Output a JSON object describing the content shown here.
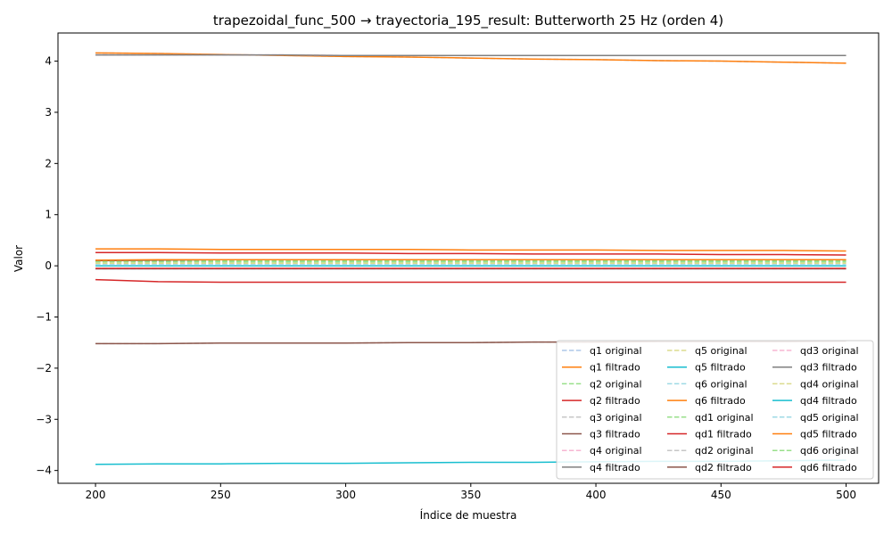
{
  "chart_data": {
    "type": "line",
    "title": "trapezoidal_func_500 → trayectoria_195_result: Butterworth 25 Hz (orden 4)",
    "xlabel": "Índice de muestra",
    "ylabel": "Valor",
    "xlim": [
      185,
      513
    ],
    "ylim": [
      -4.25,
      4.55
    ],
    "xticks": [
      200,
      250,
      300,
      350,
      400,
      450,
      500
    ],
    "yticks": [
      -4,
      -3,
      -2,
      -1,
      0,
      1,
      2,
      3,
      4
    ],
    "xtick_labels": [
      "200",
      "250",
      "300",
      "350",
      "400",
      "450",
      "500"
    ],
    "ytick_labels": [
      "−4",
      "−3",
      "−2",
      "−1",
      "0",
      "1",
      "2",
      "3",
      "4"
    ],
    "grid": false,
    "legend": {
      "placement": "lower-right",
      "columns": 3
    },
    "x": [
      200,
      225,
      250,
      275,
      300,
      325,
      350,
      375,
      400,
      425,
      450,
      475,
      500
    ],
    "series": [
      {
        "name": "q1 original",
        "color": "#aec7e8",
        "style": "dashed",
        "values": [
          4.16,
          4.15,
          4.13,
          4.11,
          4.09,
          4.08,
          4.06,
          4.04,
          4.03,
          4.01,
          4.0,
          3.98,
          3.96
        ]
      },
      {
        "name": "q1 filtrado",
        "color": "#ff7f0e",
        "style": "solid",
        "values": [
          4.16,
          4.15,
          4.13,
          4.11,
          4.09,
          4.08,
          4.06,
          4.04,
          4.03,
          4.01,
          4.0,
          3.98,
          3.96
        ]
      },
      {
        "name": "q2 original",
        "color": "#98df8a",
        "style": "dashed",
        "values": [
          0.08,
          0.08,
          0.08,
          0.08,
          0.08,
          0.08,
          0.08,
          0.08,
          0.08,
          0.08,
          0.08,
          0.08,
          0.08
        ]
      },
      {
        "name": "q2 filtrado",
        "color": "#d62728",
        "style": "solid",
        "values": [
          0.26,
          0.26,
          0.25,
          0.25,
          0.25,
          0.24,
          0.24,
          0.23,
          0.23,
          0.23,
          0.22,
          0.22,
          0.21
        ]
      },
      {
        "name": "q3 original",
        "color": "#c7c7c7",
        "style": "dashed",
        "values": [
          -1.52,
          -1.52,
          -1.51,
          -1.51,
          -1.51,
          -1.5,
          -1.5,
          -1.49,
          -1.49,
          -1.48,
          -1.48,
          -1.48,
          -1.47
        ]
      },
      {
        "name": "q3 filtrado",
        "color": "#8c564b",
        "style": "solid",
        "values": [
          -1.52,
          -1.52,
          -1.51,
          -1.51,
          -1.51,
          -1.5,
          -1.5,
          -1.49,
          -1.49,
          -1.48,
          -1.48,
          -1.48,
          -1.47
        ]
      },
      {
        "name": "q4 original",
        "color": "#f7b6d2",
        "style": "dashed",
        "values": [
          4.12,
          4.12,
          4.12,
          4.12,
          4.11,
          4.11,
          4.11,
          4.11,
          4.11,
          4.11,
          4.11,
          4.11,
          4.11
        ]
      },
      {
        "name": "q4 filtrado",
        "color": "#7f7f7f",
        "style": "solid",
        "values": [
          4.12,
          4.12,
          4.12,
          4.12,
          4.11,
          4.11,
          4.11,
          4.11,
          4.11,
          4.11,
          4.11,
          4.11,
          4.11
        ]
      },
      {
        "name": "q5 original",
        "color": "#dbdb8d",
        "style": "dashed",
        "values": [
          0.11,
          0.11,
          0.11,
          0.11,
          0.11,
          0.11,
          0.11,
          0.11,
          0.11,
          0.11,
          0.11,
          0.11,
          0.11
        ]
      },
      {
        "name": "q5 filtrado",
        "color": "#17becf",
        "style": "solid",
        "values": [
          -3.88,
          -3.87,
          -3.87,
          -3.86,
          -3.86,
          -3.85,
          -3.84,
          -3.84,
          -3.83,
          -3.82,
          -3.82,
          -3.81,
          -3.8
        ]
      },
      {
        "name": "q6 original",
        "color": "#9edae5",
        "style": "dashed",
        "values": [
          0.02,
          0.02,
          0.02,
          0.02,
          0.02,
          0.02,
          0.02,
          0.02,
          0.02,
          0.02,
          0.02,
          0.02,
          0.02
        ]
      },
      {
        "name": "q6 filtrado",
        "color": "#ff7f0e",
        "style": "solid",
        "values": [
          0.33,
          0.33,
          0.32,
          0.32,
          0.32,
          0.32,
          0.31,
          0.31,
          0.31,
          0.3,
          0.3,
          0.3,
          0.29
        ]
      },
      {
        "name": "qd1 original",
        "color": "#98df8a",
        "style": "dashed",
        "values": [
          0.1,
          0.1,
          0.1,
          0.1,
          0.1,
          0.1,
          0.1,
          0.1,
          0.1,
          0.1,
          0.1,
          0.1,
          0.1
        ]
      },
      {
        "name": "qd1 filtrado",
        "color": "#d62728",
        "style": "solid",
        "values": [
          -0.27,
          -0.31,
          -0.32,
          -0.32,
          -0.32,
          -0.32,
          -0.32,
          -0.32,
          -0.32,
          -0.32,
          -0.32,
          -0.32,
          -0.32
        ]
      },
      {
        "name": "qd2 original",
        "color": "#c7c7c7",
        "style": "dashed",
        "values": [
          -0.05,
          -0.05,
          -0.05,
          -0.05,
          -0.05,
          -0.05,
          -0.05,
          -0.05,
          -0.05,
          -0.05,
          -0.05,
          -0.05,
          -0.05
        ]
      },
      {
        "name": "qd2 filtrado",
        "color": "#8c564b",
        "style": "solid",
        "values": [
          0.1,
          0.11,
          0.12,
          0.12,
          0.12,
          0.12,
          0.12,
          0.12,
          0.12,
          0.12,
          0.12,
          0.12,
          0.12
        ]
      },
      {
        "name": "qd3 original",
        "color": "#f7b6d2",
        "style": "dashed",
        "values": [
          -0.06,
          -0.06,
          -0.06,
          -0.06,
          -0.06,
          -0.06,
          -0.06,
          -0.06,
          -0.06,
          -0.06,
          -0.06,
          -0.06,
          -0.06
        ]
      },
      {
        "name": "qd3 filtrado",
        "color": "#7f7f7f",
        "style": "solid",
        "values": [
          -0.06,
          -0.06,
          -0.06,
          -0.06,
          -0.06,
          -0.06,
          -0.06,
          -0.06,
          -0.06,
          -0.06,
          -0.06,
          -0.06,
          -0.06
        ]
      },
      {
        "name": "qd4 original",
        "color": "#dbdb8d",
        "style": "dashed",
        "values": [
          0.05,
          0.05,
          0.05,
          0.05,
          0.05,
          0.05,
          0.05,
          0.05,
          0.05,
          0.05,
          0.05,
          0.05,
          0.05
        ]
      },
      {
        "name": "qd4 filtrado",
        "color": "#17becf",
        "style": "solid",
        "values": [
          0.0,
          0.0,
          0.0,
          0.0,
          0.0,
          0.0,
          0.0,
          0.0,
          0.0,
          0.0,
          0.0,
          0.0,
          0.0
        ]
      },
      {
        "name": "qd5 original",
        "color": "#9edae5",
        "style": "dashed",
        "values": [
          0.02,
          0.02,
          0.02,
          0.02,
          0.02,
          0.02,
          0.02,
          0.02,
          0.02,
          0.02,
          0.02,
          0.02,
          0.02
        ]
      },
      {
        "name": "qd5 filtrado",
        "color": "#ff7f0e",
        "style": "solid",
        "values": [
          0.11,
          0.12,
          0.12,
          0.12,
          0.12,
          0.12,
          0.12,
          0.12,
          0.12,
          0.12,
          0.12,
          0.12,
          0.12
        ]
      },
      {
        "name": "qd6 original",
        "color": "#98df8a",
        "style": "dashed",
        "values": [
          0.08,
          0.08,
          0.08,
          0.08,
          0.08,
          0.08,
          0.08,
          0.08,
          0.08,
          0.08,
          0.08,
          0.08,
          0.08
        ]
      },
      {
        "name": "qd6 filtrado",
        "color": "#d62728",
        "style": "solid",
        "values": [
          -0.05,
          -0.05,
          -0.05,
          -0.05,
          -0.05,
          -0.05,
          -0.05,
          -0.05,
          -0.05,
          -0.05,
          -0.05,
          -0.05,
          -0.05
        ]
      }
    ]
  }
}
